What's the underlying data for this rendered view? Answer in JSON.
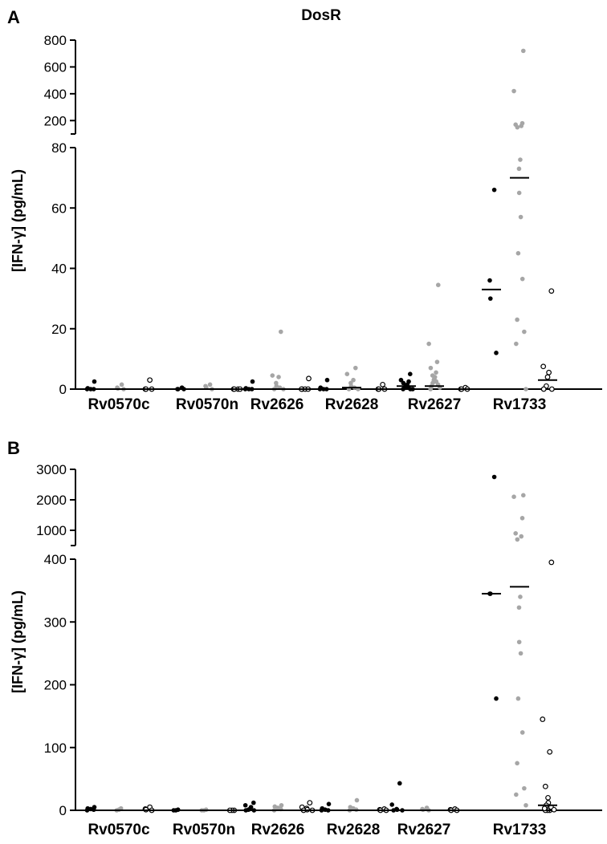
{
  "figure": {
    "title": "DosR",
    "ylabel": "[IFN-γ] (pg/mL)"
  },
  "colors": {
    "group1": "#000000",
    "group2": "#a6a6a6",
    "group3_stroke": "#000000",
    "median": "#000000",
    "axis": "#000000"
  },
  "chart_data": [
    {
      "type": "scatter",
      "panel": "A",
      "title": "DosR",
      "ylabel": "[IFN-γ] (pg/mL)",
      "categories": [
        "Rv0570c",
        "Rv0570n",
        "Rv2626",
        "Rv2628",
        "Rv2627",
        "Rv1733"
      ],
      "y_axis": {
        "lower_segment": {
          "range": [
            0,
            80
          ],
          "ticks": [
            0,
            20,
            40,
            60,
            80
          ]
        },
        "upper_segment": {
          "range": [
            100,
            800
          ],
          "ticks": [
            200,
            400,
            600,
            800
          ]
        },
        "broken": true
      },
      "groups": [
        {
          "style": "filled-black",
          "values": [
            [
              2.5,
              0.3,
              0,
              0,
              0
            ],
            [
              0.5,
              0,
              0,
              0
            ],
            [
              2.5,
              0.3,
              0,
              0,
              0
            ],
            [
              3,
              0.5,
              0,
              0,
              0
            ],
            [
              5,
              3,
              2.5,
              2,
              1.5,
              1,
              1,
              0.5,
              0.5,
              0,
              0,
              0
            ],
            [
              66,
              36,
              30,
              12
            ]
          ],
          "medians": [
            0,
            0,
            0,
            0,
            1,
            33
          ]
        },
        {
          "style": "filled-grey",
          "values": [
            [
              1.5,
              0.5,
              0.2,
              0
            ],
            [
              1.5,
              1,
              0.5,
              0
            ],
            [
              19,
              4.5,
              4,
              2,
              1,
              0.5,
              0,
              0
            ],
            [
              7,
              5,
              3,
              2,
              1,
              0.5,
              0,
              0
            ],
            [
              34.5,
              15,
              9,
              7,
              5.5,
              4.5,
              4,
              3.5,
              3,
              2.5,
              2,
              1.5,
              1,
              0.5,
              0
            ],
            [
              720,
              420,
              180,
              170,
              160,
              150,
              76,
              73,
              65,
              57,
              45,
              36.5,
              23,
              19,
              15,
              0
            ]
          ],
          "medians": [
            0,
            0,
            0,
            0.5,
            1,
            70
          ]
        },
        {
          "style": "open-circle",
          "values": [
            [
              3,
              0,
              0,
              0
            ],
            [
              0,
              0,
              0,
              0
            ],
            [
              3.5,
              0,
              0,
              0,
              0
            ],
            [
              1.5,
              0,
              0,
              0
            ],
            [
              0.5,
              0,
              0,
              0
            ],
            [
              32.5,
              7.5,
              5.5,
              4,
              1,
              0,
              0
            ]
          ],
          "medians": [
            0,
            0,
            0,
            0,
            0,
            3
          ]
        }
      ]
    },
    {
      "type": "scatter",
      "panel": "B",
      "title": "",
      "ylabel": "[IFN-γ] (pg/mL)",
      "categories": [
        "Rv0570c",
        "Rv0570n",
        "Rv2626",
        "Rv2628",
        "Rv2627",
        "Rv1733"
      ],
      "y_axis": {
        "lower_segment": {
          "range": [
            0,
            400
          ],
          "ticks": [
            0,
            100,
            200,
            300,
            400
          ]
        },
        "upper_segment": {
          "range": [
            500,
            3000
          ],
          "ticks": [
            1000,
            2000,
            3000
          ]
        },
        "broken": true
      },
      "groups": [
        {
          "style": "filled-black",
          "values": [
            [
              5,
              3,
              2,
              1,
              0
            ],
            [
              1,
              0,
              0
            ],
            [
              12,
              8,
              5,
              2,
              1,
              0,
              0
            ],
            [
              10,
              3,
              1,
              0,
              0
            ],
            [
              43,
              9,
              2,
              1,
              0,
              0
            ],
            [
              2750,
              345,
              345,
              178
            ]
          ],
          "medians": [
            0,
            0,
            0,
            0,
            0,
            345
          ]
        },
        {
          "style": "filled-grey",
          "values": [
            [
              3,
              1,
              0
            ],
            [
              1,
              0,
              0
            ],
            [
              8,
              6,
              4,
              2,
              0
            ],
            [
              16,
              5,
              3,
              1,
              0
            ],
            [
              4,
              2,
              1,
              0
            ],
            [
              2150,
              2100,
              1400,
              900,
              800,
              700,
              340,
              323,
              268,
              250,
              178,
              124,
              75,
              35,
              25,
              8
            ]
          ],
          "medians": [
            0,
            0,
            0,
            0,
            0,
            356
          ]
        },
        {
          "style": "open-circle",
          "values": [
            [
              5,
              2,
              1,
              0
            ],
            [
              0,
              0,
              0
            ],
            [
              12,
              5,
              3,
              1,
              0,
              0
            ],
            [
              2,
              1,
              0,
              0
            ],
            [
              2,
              1,
              0,
              0
            ],
            [
              0,
              0,
              0
            ]
          ],
          "medians": [
            0,
            0,
            0,
            0,
            0,
            0
          ]
        },
        {
          "style": "open-circle",
          "values": [
            [],
            [],
            [],
            [],
            [],
            [
              395,
              145,
              93,
              38,
              20,
              12,
              8,
              5,
              3,
              1
            ]
          ],
          "medians": [
            0,
            0,
            0,
            0,
            0,
            8
          ]
        }
      ]
    }
  ]
}
